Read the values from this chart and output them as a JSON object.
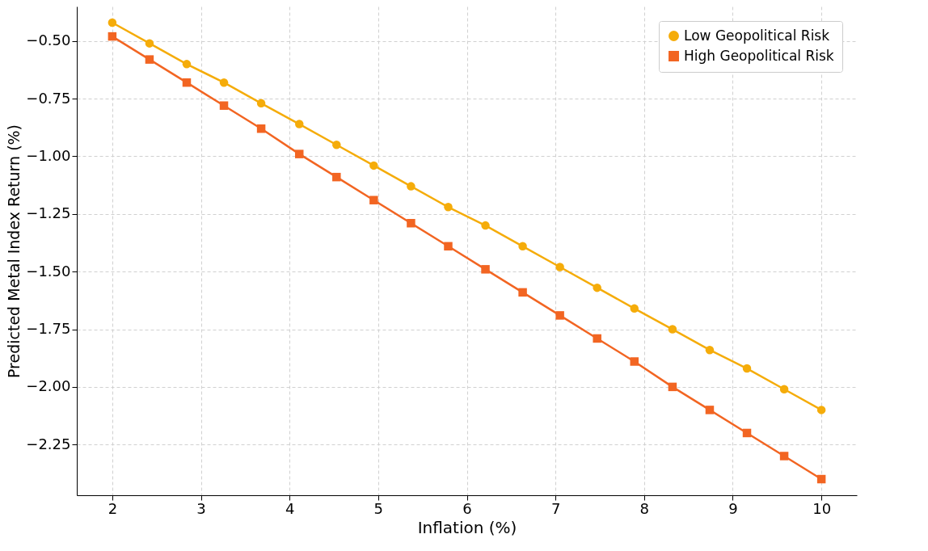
{
  "chart_data": {
    "type": "line",
    "xlabel": "Inflation (%)",
    "ylabel": "Predicted Metal Index Return (%)",
    "x": [
      2,
      2.42,
      2.84,
      3.26,
      3.68,
      4.11,
      4.53,
      4.95,
      5.37,
      5.79,
      6.21,
      6.63,
      7.05,
      7.47,
      7.89,
      8.32,
      8.74,
      9.16,
      9.58,
      10
    ],
    "series": [
      {
        "name": "Low Geopolitical Risk",
        "color": "#f5ac0a",
        "marker": "circle",
        "values": [
          -0.42,
          -0.51,
          -0.6,
          -0.68,
          -0.77,
          -0.86,
          -0.95,
          -1.04,
          -1.13,
          -1.22,
          -1.3,
          -1.39,
          -1.48,
          -1.57,
          -1.66,
          -1.75,
          -1.84,
          -1.92,
          -2.01,
          -2.1
        ]
      },
      {
        "name": "High Geopolitical Risk",
        "color": "#f26522",
        "marker": "square",
        "values": [
          -0.48,
          -0.58,
          -0.68,
          -0.78,
          -0.88,
          -0.99,
          -1.09,
          -1.19,
          -1.29,
          -1.39,
          -1.49,
          -1.59,
          -1.69,
          -1.79,
          -1.89,
          -2.0,
          -2.1,
          -2.2,
          -2.3,
          -2.4
        ]
      }
    ],
    "xlim": [
      1.6,
      10.4
    ],
    "xticks": [
      2,
      3,
      4,
      5,
      6,
      7,
      8,
      9,
      10
    ],
    "ylim": [
      -2.47,
      -0.35
    ],
    "yticks": [
      {
        "value": -2.25,
        "label": "−2.25"
      },
      {
        "value": -2.0,
        "label": "−2.00"
      },
      {
        "value": -1.75,
        "label": "−1.75"
      },
      {
        "value": -1.5,
        "label": "−1.50"
      },
      {
        "value": -1.25,
        "label": "−1.25"
      },
      {
        "value": -1.0,
        "label": "−1.00"
      },
      {
        "value": -0.75,
        "label": "−0.75"
      },
      {
        "value": -0.5,
        "label": "−0.50"
      }
    ],
    "grid": true,
    "legend": "top right",
    "line_style": "solid"
  }
}
